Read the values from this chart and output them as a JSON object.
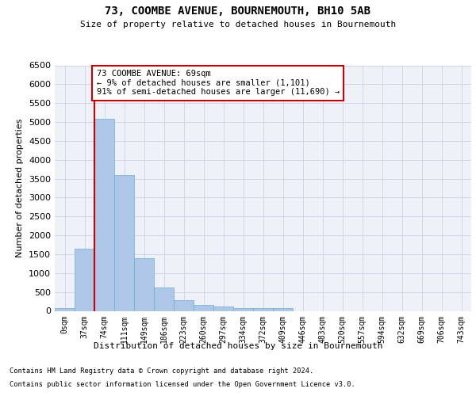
{
  "title": "73, COOMBE AVENUE, BOURNEMOUTH, BH10 5AB",
  "subtitle": "Size of property relative to detached houses in Bournemouth",
  "xlabel": "Distribution of detached houses by size in Bournemouth",
  "ylabel": "Number of detached properties",
  "footnote1": "Contains HM Land Registry data © Crown copyright and database right 2024.",
  "footnote2": "Contains public sector information licensed under the Open Government Licence v3.0.",
  "bar_labels": [
    "0sqm",
    "37sqm",
    "74sqm",
    "111sqm",
    "149sqm",
    "186sqm",
    "223sqm",
    "260sqm",
    "297sqm",
    "334sqm",
    "372sqm",
    "409sqm",
    "446sqm",
    "483sqm",
    "520sqm",
    "557sqm",
    "594sqm",
    "632sqm",
    "669sqm",
    "706sqm",
    "743sqm"
  ],
  "bar_values": [
    70,
    1650,
    5080,
    3600,
    1400,
    620,
    290,
    150,
    110,
    80,
    65,
    65,
    0,
    0,
    0,
    0,
    0,
    0,
    0,
    0,
    0
  ],
  "bar_color": "#aec6e8",
  "bar_edgecolor": "#6baed6",
  "property_line_x": 1.5,
  "property_sqm": 69,
  "annotation_text": "73 COOMBE AVENUE: 69sqm\n← 9% of detached houses are smaller (1,101)\n91% of semi-detached houses are larger (11,690) →",
  "annotation_box_color": "#ffffff",
  "annotation_box_edgecolor": "#cc0000",
  "red_line_color": "#cc0000",
  "ylim": [
    0,
    6500
  ],
  "yticks": [
    0,
    500,
    1000,
    1500,
    2000,
    2500,
    3000,
    3500,
    4000,
    4500,
    5000,
    5500,
    6000,
    6500
  ],
  "grid_color": "#d0d8e8",
  "background_color": "#eef2f8",
  "figure_background": "#ffffff"
}
